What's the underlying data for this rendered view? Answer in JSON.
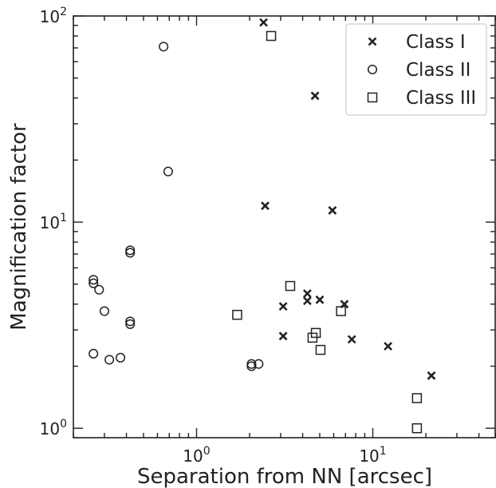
{
  "chart_data": {
    "type": "scatter",
    "xlabel": "Separation from NN [arcsec]",
    "ylabel": "Magnification factor",
    "xscale": "log",
    "yscale": "log",
    "xlim": [
      0.2,
      50
    ],
    "ylim": [
      0.9,
      100
    ],
    "x_ticks": [
      {
        "value": 1,
        "label": "10",
        "sup": "0"
      },
      {
        "value": 10,
        "label": "10",
        "sup": "1"
      }
    ],
    "y_ticks": [
      {
        "value": 1,
        "label": "10",
        "sup": "0"
      },
      {
        "value": 10,
        "label": "10",
        "sup": "1"
      },
      {
        "value": 100,
        "label": "10",
        "sup": "2"
      }
    ],
    "grid": false,
    "legend_position": "top-right",
    "series": [
      {
        "name": "Class I",
        "marker": "x",
        "points": [
          [
            2.4,
            93
          ],
          [
            4.7,
            41
          ],
          [
            2.45,
            12
          ],
          [
            5.9,
            11.4
          ],
          [
            3.1,
            3.9
          ],
          [
            4.25,
            4.5
          ],
          [
            4.25,
            4.15
          ],
          [
            5.0,
            4.2
          ],
          [
            6.9,
            4.0
          ],
          [
            3.1,
            2.8
          ],
          [
            7.6,
            2.7
          ],
          [
            12.2,
            2.5
          ],
          [
            21.5,
            1.8
          ]
        ]
      },
      {
        "name": "Class II",
        "marker": "o",
        "points": [
          [
            0.65,
            71
          ],
          [
            0.69,
            17.6
          ],
          [
            0.42,
            7.3
          ],
          [
            0.42,
            7.1
          ],
          [
            0.26,
            5.25
          ],
          [
            0.26,
            5.05
          ],
          [
            0.28,
            4.7
          ],
          [
            0.3,
            3.7
          ],
          [
            0.42,
            3.3
          ],
          [
            0.42,
            3.2
          ],
          [
            0.26,
            2.3
          ],
          [
            0.32,
            2.15
          ],
          [
            0.37,
            2.2
          ],
          [
            2.05,
            2.0
          ],
          [
            2.05,
            2.05
          ],
          [
            2.25,
            2.05
          ]
        ]
      },
      {
        "name": "Class III",
        "marker": "s",
        "points": [
          [
            2.65,
            80
          ],
          [
            3.4,
            4.9
          ],
          [
            1.7,
            3.55
          ],
          [
            6.6,
            3.7
          ],
          [
            4.75,
            2.9
          ],
          [
            4.55,
            2.75
          ],
          [
            5.05,
            2.4
          ],
          [
            17.8,
            1.4
          ],
          [
            17.8,
            1.0
          ]
        ]
      }
    ]
  }
}
